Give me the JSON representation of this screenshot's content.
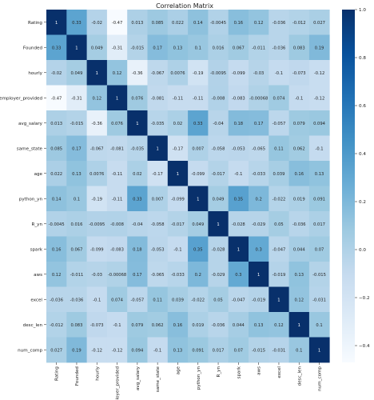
{
  "chart_data": {
    "type": "heatmap",
    "title": "Correlation Matrix",
    "xlabel": "",
    "ylabel": "",
    "colormap": "Blues",
    "colorbar": {
      "range": [
        -0.47,
        1.0
      ],
      "ticks": [
        1.0,
        0.8,
        0.6,
        0.4,
        0.2,
        0.0,
        -0.2,
        -0.4
      ],
      "tick_labels": [
        "1.0",
        "0.8",
        "0.6",
        "0.4",
        "0.2",
        "0.0",
        "−0.2",
        "−0.4"
      ]
    },
    "variables": [
      "Rating",
      "Founded",
      "hourly",
      "employer_provided",
      "avg_salary",
      "same_state",
      "age",
      "python_yn",
      "R_yn",
      "spark",
      "aws",
      "excel",
      "desc_len",
      "num_comp"
    ],
    "values": [
      [
        1,
        0.33,
        -0.02,
        -0.47,
        0.013,
        0.085,
        0.022,
        0.14,
        -0.0045,
        0.16,
        0.12,
        -0.036,
        -0.012,
        0.027
      ],
      [
        0.33,
        1,
        0.049,
        -0.31,
        -0.015,
        0.17,
        0.13,
        0.1,
        0.016,
        0.067,
        -0.011,
        -0.036,
        0.083,
        0.19
      ],
      [
        -0.02,
        0.049,
        1,
        0.12,
        -0.36,
        -0.067,
        0.0076,
        -0.19,
        -0.0095,
        -0.099,
        -0.03,
        -0.1,
        -0.073,
        -0.12
      ],
      [
        -0.47,
        -0.31,
        0.12,
        1,
        0.076,
        -0.081,
        -0.11,
        -0.11,
        -0.008,
        -0.083,
        -0.00068,
        0.074,
        -0.1,
        -0.12
      ],
      [
        0.013,
        -0.015,
        -0.36,
        0.076,
        1,
        -0.035,
        0.02,
        0.33,
        -0.04,
        0.18,
        0.17,
        -0.057,
        0.079,
        0.094
      ],
      [
        0.085,
        0.17,
        -0.067,
        -0.081,
        -0.035,
        1,
        -0.17,
        0.007,
        -0.058,
        -0.053,
        -0.065,
        0.11,
        0.062,
        -0.1
      ],
      [
        0.022,
        0.13,
        0.0076,
        -0.11,
        0.02,
        -0.17,
        1,
        -0.099,
        -0.017,
        -0.1,
        -0.033,
        0.039,
        0.16,
        0.13
      ],
      [
        0.14,
        0.1,
        -0.19,
        -0.11,
        0.33,
        0.007,
        -0.099,
        1,
        0.049,
        0.35,
        0.2,
        -0.022,
        0.019,
        0.091
      ],
      [
        -0.0045,
        0.016,
        -0.0095,
        -0.008,
        -0.04,
        -0.058,
        -0.017,
        0.049,
        1,
        -0.028,
        -0.029,
        0.05,
        -0.036,
        0.017
      ],
      [
        0.16,
        0.067,
        -0.099,
        -0.083,
        0.18,
        -0.053,
        -0.1,
        0.35,
        -0.028,
        1,
        0.3,
        -0.047,
        0.044,
        0.07
      ],
      [
        0.12,
        -0.011,
        -0.03,
        -0.00068,
        0.17,
        -0.065,
        -0.033,
        0.2,
        -0.029,
        0.3,
        1,
        -0.019,
        0.13,
        -0.015
      ],
      [
        -0.036,
        -0.036,
        -0.1,
        0.074,
        -0.057,
        0.11,
        0.039,
        -0.022,
        0.05,
        -0.047,
        -0.019,
        1,
        0.12,
        -0.031
      ],
      [
        -0.012,
        0.083,
        -0.073,
        -0.1,
        0.079,
        0.062,
        0.16,
        0.019,
        -0.036,
        0.044,
        0.13,
        0.12,
        1,
        0.1
      ],
      [
        0.027,
        0.19,
        -0.12,
        -0.12,
        0.094,
        -0.1,
        0.13,
        0.091,
        0.017,
        0.07,
        -0.015,
        -0.031,
        0.1,
        1
      ]
    ],
    "cell_labels": [
      [
        "1",
        "0.33",
        "-0.02",
        "-0.47",
        "0.013",
        "0.085",
        "0.022",
        "0.14",
        "-0.0045",
        "0.16",
        "0.12",
        "-0.036",
        "-0.012",
        "0.027"
      ],
      [
        "0.33",
        "1",
        "0.049",
        "-0.31",
        "-0.015",
        "0.17",
        "0.13",
        "0.1",
        "0.016",
        "0.067",
        "-0.011",
        "-0.036",
        "0.083",
        "0.19"
      ],
      [
        "-0.02",
        "0.049",
        "1",
        "0.12",
        "-0.36",
        "-0.067",
        "0.0076",
        "-0.19",
        "-0.0095",
        "-0.099",
        "-0.03",
        "-0.1",
        "-0.073",
        "-0.12"
      ],
      [
        "-0.47",
        "-0.31",
        "0.12",
        "1",
        "0.076",
        "-0.081",
        "-0.11",
        "-0.11",
        "-0.008",
        "-0.083",
        "-0.00068",
        "0.074",
        "-0.1",
        "-0.12"
      ],
      [
        "0.013",
        "-0.015",
        "-0.36",
        "0.076",
        "1",
        "-0.035",
        "0.02",
        "0.33",
        "-0.04",
        "0.18",
        "0.17",
        "-0.057",
        "0.079",
        "0.094"
      ],
      [
        "0.085",
        "0.17",
        "-0.067",
        "-0.081",
        "-0.035",
        "1",
        "-0.17",
        "0.007",
        "-0.058",
        "-0.053",
        "-0.065",
        "0.11",
        "0.062",
        "-0.1"
      ],
      [
        "0.022",
        "0.13",
        "0.0076",
        "-0.11",
        "0.02",
        "-0.17",
        "1",
        "-0.099",
        "-0.017",
        "-0.1",
        "-0.033",
        "0.039",
        "0.16",
        "0.13"
      ],
      [
        "0.14",
        "0.1",
        "-0.19",
        "-0.11",
        "0.33",
        "0.007",
        "-0.099",
        "1",
        "0.049",
        "0.35",
        "0.2",
        "-0.022",
        "0.019",
        "0.091"
      ],
      [
        "-0.0045",
        "0.016",
        "-0.0095",
        "-0.008",
        "-0.04",
        "-0.058",
        "-0.017",
        "0.049",
        "1",
        "-0.028",
        "-0.029",
        "0.05",
        "-0.036",
        "0.017"
      ],
      [
        "0.16",
        "0.067",
        "-0.099",
        "-0.083",
        "0.18",
        "-0.053",
        "-0.1",
        "0.35",
        "-0.028",
        "1",
        "0.3",
        "-0.047",
        "0.044",
        "0.07"
      ],
      [
        "0.12",
        "-0.011",
        "-0.03",
        "-0.00068",
        "0.17",
        "-0.065",
        "-0.033",
        "0.2",
        "-0.029",
        "0.3",
        "1",
        "-0.019",
        "0.13",
        "-0.015"
      ],
      [
        "-0.036",
        "-0.036",
        "-0.1",
        "0.074",
        "-0.057",
        "0.11",
        "0.039",
        "-0.022",
        "0.05",
        "-0.047",
        "-0.019",
        "1",
        "0.12",
        "-0.031"
      ],
      [
        "-0.012",
        "0.083",
        "-0.073",
        "-0.1",
        "0.079",
        "0.062",
        "0.16",
        "0.019",
        "-0.036",
        "0.044",
        "0.13",
        "0.12",
        "1",
        "0.1"
      ],
      [
        "0.027",
        "0.19",
        "-0.12",
        "-0.12",
        "0.094",
        "-0.1",
        "0.13",
        "0.091",
        "0.017",
        "0.07",
        "-0.015",
        "-0.031",
        "0.1",
        "1"
      ]
    ]
  }
}
